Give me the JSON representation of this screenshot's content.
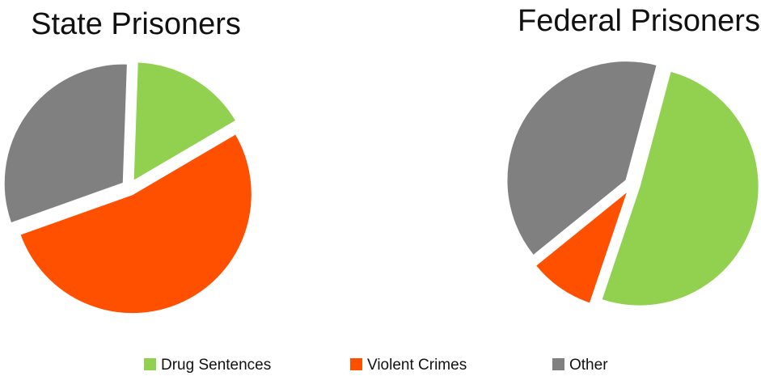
{
  "chart_data": [
    {
      "type": "pie",
      "title": "State Prisoners",
      "categories": [
        "Drug Sentences",
        "Violent Crimes",
        "Other"
      ],
      "values": [
        16,
        53,
        31
      ],
      "colors": [
        "#92d050",
        "#ff5000",
        "#808080"
      ]
    },
    {
      "type": "pie",
      "title": "Federal Prisoners",
      "categories": [
        "Drug Sentences",
        "Violent Crimes",
        "Other"
      ],
      "values": [
        51,
        9,
        40
      ],
      "colors": [
        "#92d050",
        "#ff5000",
        "#808080"
      ]
    }
  ]
}
